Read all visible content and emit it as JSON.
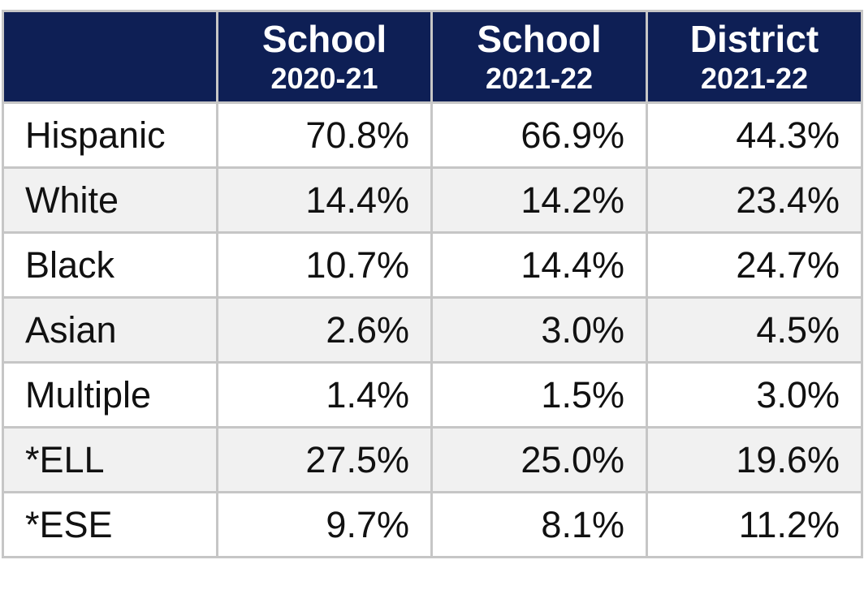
{
  "table": {
    "header": [
      {
        "line1": "School",
        "line2": "2020-21"
      },
      {
        "line1": "School",
        "line2": "2021-22"
      },
      {
        "line1": "District",
        "line2": "2021-22"
      }
    ],
    "rows": [
      [
        "Hispanic",
        "70.8%",
        "66.9%",
        "44.3%"
      ],
      [
        "White",
        "14.4%",
        "14.2%",
        "23.4%"
      ],
      [
        "Black",
        "10.7%",
        "14.4%",
        "24.7%"
      ],
      [
        "Asian",
        "2.6%",
        "3.0%",
        "4.5%"
      ],
      [
        "Multiple",
        "1.4%",
        "1.5%",
        "3.0%"
      ],
      [
        "*ELL",
        "27.5%",
        "25.0%",
        "19.6%"
      ],
      [
        "*ESE",
        "9.7%",
        "8.1%",
        "11.2%"
      ]
    ]
  }
}
